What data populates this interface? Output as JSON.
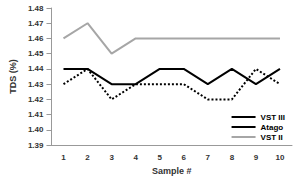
{
  "chart_data": {
    "type": "line",
    "x_label": "Sample #",
    "y_label": "TDS (%)",
    "categories": [
      "1",
      "2",
      "3",
      "4",
      "5",
      "6",
      "7",
      "8",
      "9",
      "10"
    ],
    "series": [
      {
        "name": "VST III",
        "color": "#000000",
        "line_style": "solid",
        "marker": "none",
        "values": [
          1.44,
          1.44,
          1.43,
          1.43,
          1.44,
          1.44,
          1.43,
          1.44,
          1.43,
          1.44
        ]
      },
      {
        "name": "Atago",
        "color": "#000000",
        "line_style": "dotted",
        "marker": "none",
        "values": [
          1.43,
          1.44,
          1.42,
          1.43,
          1.43,
          1.43,
          1.42,
          1.42,
          1.44,
          1.43
        ]
      },
      {
        "name": "VST II",
        "color": "#a6a6a6",
        "line_style": "solid",
        "marker": "none",
        "values": [
          1.46,
          1.47,
          1.45,
          1.46,
          1.46,
          1.46,
          1.46,
          1.46,
          1.46,
          1.46
        ]
      }
    ],
    "ylim": [
      1.39,
      1.48
    ],
    "yticks": [
      1.39,
      {
        "value": 1.4,
        "label": "1.40"
      },
      1.41,
      1.42,
      1.43,
      1.44,
      1.45,
      1.46,
      1.47,
      1.48
    ],
    "grid": false,
    "legend": "lower right"
  }
}
